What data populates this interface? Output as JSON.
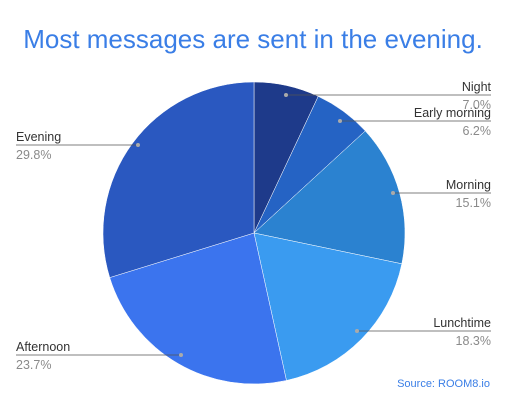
{
  "chart_data": {
    "type": "pie",
    "title": "Most messages are sent in the evening.",
    "slices": [
      {
        "label": "Night",
        "value": 7.0,
        "display": "7.0%",
        "color": "#1e3a8a"
      },
      {
        "label": "Early morning",
        "value": 6.2,
        "display": "6.2%",
        "color": "#2563c4"
      },
      {
        "label": "Morning",
        "value": 15.1,
        "display": "15.1%",
        "color": "#2b82d0"
      },
      {
        "label": "Lunchtime",
        "value": 18.3,
        "display": "18.3%",
        "color": "#3a9bf0"
      },
      {
        "label": "Afternoon",
        "value": 23.7,
        "display": "23.7%",
        "color": "#3b74ee"
      },
      {
        "label": "Evening",
        "value": 29.8,
        "display": "29.8%",
        "color": "#2a58c0"
      }
    ],
    "start": "top",
    "direction": "clockwise",
    "legend": "none"
  },
  "source": "Source: ROOM8.io",
  "colors": {
    "title": "#3a7ee6",
    "source": "#3a7ee6",
    "leader_line": "#555555",
    "leader_dot": "#aaaaaa"
  }
}
